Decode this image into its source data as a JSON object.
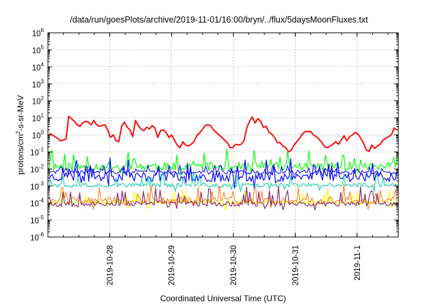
{
  "chart_data": {
    "type": "line",
    "title": "/data/run/goesPlots/archive/2019-11-01/16:00/bryn/../flux/5daysMoonFluxes.txt",
    "xlabel": "Coordinated Universal Time (UTC)",
    "ylabel": "protons/cm2-s-sr-MeV",
    "ylabel_parts": {
      "pre": "protons/cm",
      "sup": "2",
      "post": "-s-sr-MeV"
    },
    "yscale": "log",
    "ylim_exp": [
      -6,
      6
    ],
    "y_ticks": [
      {
        "base": "10",
        "exp": "-6"
      },
      {
        "base": "10",
        "exp": "-5"
      },
      {
        "base": "10",
        "exp": "-4"
      },
      {
        "base": "10",
        "exp": "-3"
      },
      {
        "base": "10",
        "exp": "-2"
      },
      {
        "base": "10",
        "exp": "-1"
      },
      {
        "base": "10",
        "exp": "0"
      },
      {
        "base": "10",
        "exp": "1"
      },
      {
        "base": "10",
        "exp": "2"
      },
      {
        "base": "10",
        "exp": "3"
      },
      {
        "base": "10",
        "exp": "4"
      },
      {
        "base": "10",
        "exp": "5"
      },
      {
        "base": "10",
        "exp": "6"
      }
    ],
    "xlim": [
      "2019-10-27T00:00",
      "2019-11-01T16:00"
    ],
    "x_tick_labels": [
      "2019-10-28",
      "2019-10-29",
      "2019-10-30",
      "2019-10-31",
      "2019-11-1"
    ],
    "grid": true,
    "legend": "none",
    "series": [
      {
        "color": "#ff0000",
        "log10_y": [
          0.1,
          0.0,
          -0.1,
          -0.2,
          -0.35,
          -0.3,
          -0.25,
          1.1,
          0.95,
          0.8,
          0.6,
          0.5,
          0.7,
          0.8,
          0.75,
          0.6,
          0.85,
          0.6,
          0.5,
          0.55,
          0.6,
          0.3,
          -0.15,
          0.0,
          -0.35,
          -0.4,
          0.5,
          0.75,
          0.45,
          0.3,
          -0.1,
          0.85,
          0.55,
          0.35,
          0.25,
          0.45,
          0.35,
          0.55,
          0.4,
          -0.15,
          0.25,
          0.3,
          0.15,
          -0.15,
          0.0,
          -0.3,
          -0.6,
          -0.75,
          -0.4,
          -0.6,
          -0.65,
          -0.55,
          -0.4,
          -0.05,
          0.1,
          0.3,
          0.55,
          0.6,
          0.55,
          0.3,
          0.15,
          0.0,
          -0.15,
          -0.3,
          -0.45,
          -0.75,
          -0.75,
          -0.55,
          -0.6,
          -0.55,
          -0.35,
          0.4,
          0.8,
          1.05,
          0.7,
          0.95,
          0.8,
          0.45,
          0.5,
          0.15,
          0.05,
          -0.15,
          -0.45,
          -0.45,
          -0.65,
          -0.75,
          -1.0,
          -0.9,
          -0.6,
          -0.4,
          -0.2,
          0.05,
          0.2,
          0.2,
          0.2,
          0.0,
          -0.1,
          -0.25,
          -0.45,
          -0.7,
          -0.75,
          -0.65,
          -0.55,
          -0.4,
          -0.55,
          -0.3,
          -0.05,
          -0.35,
          -0.1,
          0.0,
          0.15,
          0.05,
          -0.2,
          -0.5,
          -0.9,
          -0.95,
          -0.6,
          -0.8,
          -0.65,
          -0.55,
          -0.3,
          -0.2,
          -0.1,
          0.0,
          0.4,
          0.3
        ],
        "stroke": 1.9
      },
      {
        "color": "#00ff00",
        "base": -1.85,
        "amp": 0.25,
        "spike": 0.9,
        "seed": 11,
        "stroke": 1.2
      },
      {
        "color": "#0000ff",
        "base": -2.45,
        "amp": 0.3,
        "spike": 0.9,
        "seed": 23,
        "stroke": 1.2
      },
      {
        "color": "#0000dd",
        "base": -2.2,
        "amp": 0.12,
        "spike": 0.4,
        "seed": 29,
        "stroke": 1.0
      },
      {
        "color": "#00ccaa",
        "base": -2.95,
        "amp": 0.12,
        "spike": 0.8,
        "seed": 37,
        "stroke": 1.0
      },
      {
        "color": "#ffff00",
        "base": -3.95,
        "amp": 0.12,
        "spike": 0.7,
        "seed": 41,
        "stroke": 1.1
      },
      {
        "color": "#ff7700",
        "base": -3.85,
        "amp": 0.2,
        "spike": 0.8,
        "seed": 47,
        "stroke": 1.0
      },
      {
        "color": "#8b2a6e",
        "base": -4.05,
        "amp": 0.15,
        "spike": 0.9,
        "seed": 53,
        "stroke": 1.2
      }
    ]
  }
}
